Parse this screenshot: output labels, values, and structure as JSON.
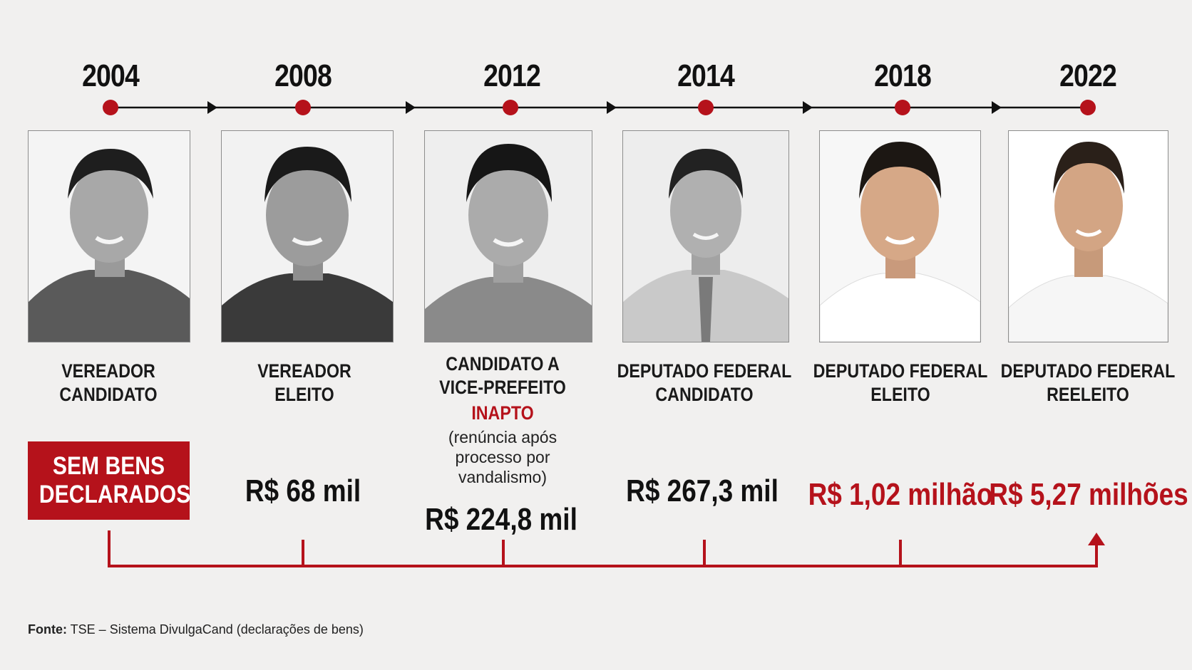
{
  "timeline": [
    {
      "year": "2004",
      "role_line1": "VEREADOR",
      "role_line2": "CANDIDATO",
      "value": "",
      "badge_line1": "SEM BENS",
      "badge_line2": "DECLARADOS",
      "photo": "bw-portrait"
    },
    {
      "year": "2008",
      "role_line1": "VEREADOR",
      "role_line2": "ELEITO",
      "value": "R$ 68 mil",
      "photo": "bw-portrait"
    },
    {
      "year": "2012",
      "role_line1": "CANDIDATO A",
      "role_line2": "VICE-PREFEITO",
      "status": "INAPTO",
      "note_line1": "(renúncia após",
      "note_line2": "processo por",
      "note_line3": "vandalismo)",
      "value": "R$ 224,8 mil",
      "photo": "bw-portrait"
    },
    {
      "year": "2014",
      "role_line1": "DEPUTADO FEDERAL",
      "role_line2": "CANDIDATO",
      "value": "R$ 267,3 mil",
      "photo": "bw-portrait-tie"
    },
    {
      "year": "2018",
      "role_line1": "DEPUTADO FEDERAL",
      "role_line2": "ELEITO",
      "value": "R$ 1,02 milhão",
      "photo": "color-portrait"
    },
    {
      "year": "2022",
      "role_line1": "DEPUTADO FEDERAL",
      "role_line2": "REELEITO",
      "value": "R$ 5,27 milhões",
      "photo": "color-portrait"
    }
  ],
  "source": {
    "label": "Fonte:",
    "text": "TSE – Sistema DivulgaCand (declarações de bens)"
  },
  "colors": {
    "accent": "#b5121b",
    "text": "#111111",
    "background": "#f1f0ef"
  }
}
